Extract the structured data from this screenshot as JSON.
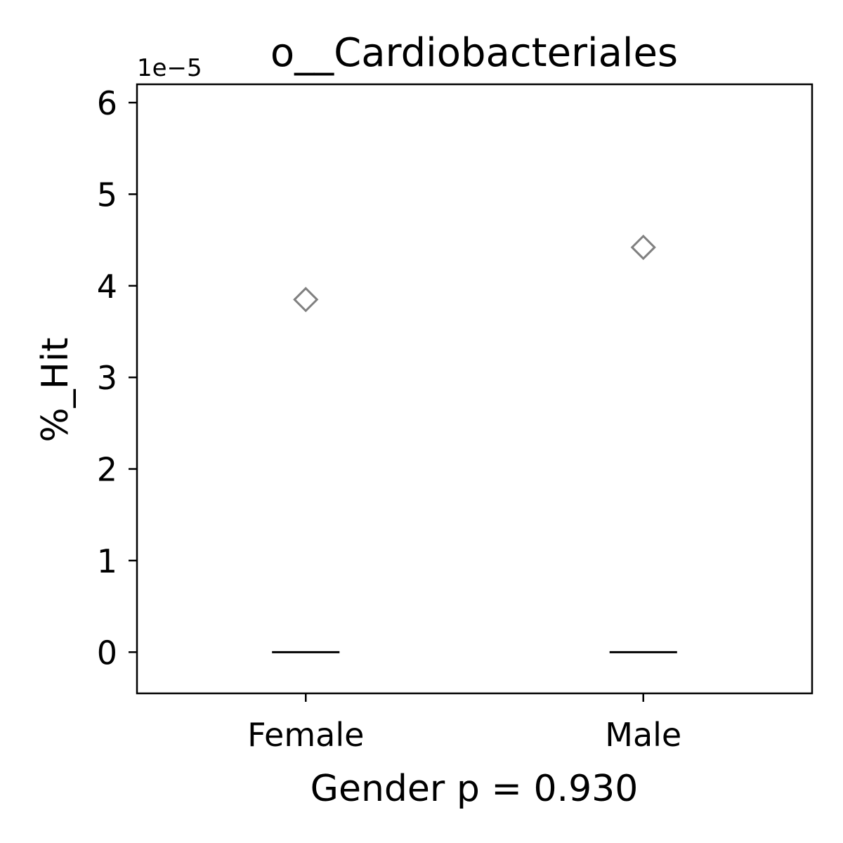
{
  "chart_data": {
    "type": "box",
    "title": "o__Cardiobacteriales",
    "xlabel": "Gender p = 0.930",
    "ylabel": "%_Hit",
    "y_offset_label": "1e−5",
    "y_scale": 1e-05,
    "ylim": [
      -0.45,
      6.2
    ],
    "yticks": [
      0,
      1,
      2,
      3,
      4,
      5,
      6
    ],
    "categories": [
      "Female",
      "Male"
    ],
    "boxes": [
      {
        "category": "Female",
        "median": 0,
        "q1": 0,
        "q3": 0,
        "whisker_low": 0,
        "whisker_high": 0,
        "outliers": [
          3.85
        ]
      },
      {
        "category": "Male",
        "median": 0,
        "q1": 0,
        "q3": 0,
        "whisker_low": 0,
        "whisker_high": 0,
        "outliers": [
          4.42
        ]
      }
    ],
    "colors": {
      "outlier": "#808080",
      "median": "#000000",
      "axes": "#000000"
    },
    "grid": false,
    "legend": "none"
  }
}
